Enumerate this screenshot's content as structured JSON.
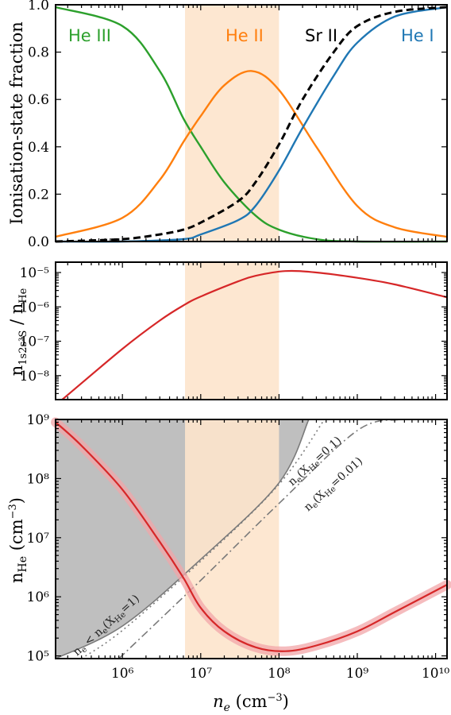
{
  "colors": {
    "he3": "#2ca02c",
    "he2": "#ff7f0e",
    "he1": "#1f77b4",
    "sr2": "#000000",
    "metastable": "#d62728",
    "band": "#fde4cc",
    "excluded": "#b4b4b4",
    "limit": "#7a7a7a"
  },
  "chart_data": [
    {
      "type": "line",
      "ylabel": "Ionisation-state fraction",
      "xscale": "log",
      "xlim": [
        140000.0,
        14000000000.0
      ],
      "ylim": [
        0,
        1.0
      ],
      "yticks": [
        "0.0",
        "0.2",
        "0.4",
        "0.6",
        "0.8",
        "1.0"
      ],
      "shaded_band": {
        "x_from": 6300000.0,
        "x_to": 100000000.0
      },
      "series": [
        {
          "name": "He III",
          "style": "solid",
          "color_key": "he3",
          "x": [
            140000.0,
            1000000.0,
            3000000.0,
            6000000.0,
            10000000.0,
            20000000.0,
            50000000.0,
            100000000.0,
            300000000.0,
            1000000000.0,
            14000000000.0
          ],
          "y": [
            0.99,
            0.91,
            0.72,
            0.52,
            0.4,
            0.25,
            0.11,
            0.05,
            0.01,
            0.0,
            0.0
          ]
        },
        {
          "name": "He II",
          "style": "solid",
          "color_key": "he2",
          "x": [
            140000.0,
            1000000.0,
            3000000.0,
            6000000.0,
            10000000.0,
            20000000.0,
            45000000.0,
            100000000.0,
            300000000.0,
            1000000000.0,
            3000000000.0,
            14000000000.0
          ],
          "y": [
            0.02,
            0.1,
            0.26,
            0.42,
            0.53,
            0.66,
            0.72,
            0.64,
            0.4,
            0.15,
            0.06,
            0.02
          ]
        },
        {
          "name": "He I",
          "style": "solid",
          "color_key": "he1",
          "x": [
            140000.0,
            1000000.0,
            6000000.0,
            10000000.0,
            30000000.0,
            50000000.0,
            100000000.0,
            200000000.0,
            500000000.0,
            1000000000.0,
            3000000000.0,
            14000000000.0
          ],
          "y": [
            0.0,
            0.0,
            0.01,
            0.03,
            0.09,
            0.15,
            0.3,
            0.48,
            0.7,
            0.84,
            0.95,
            0.99
          ]
        },
        {
          "name": "Sr II",
          "style": "dashed",
          "color_key": "sr2",
          "x": [
            140000.0,
            1000000.0,
            3000000.0,
            6000000.0,
            10000000.0,
            30000000.0,
            50000000.0,
            100000000.0,
            200000000.0,
            500000000.0,
            1000000000.0,
            3000000000.0,
            14000000000.0
          ],
          "y": [
            0.0,
            0.01,
            0.03,
            0.05,
            0.08,
            0.17,
            0.25,
            0.41,
            0.6,
            0.8,
            0.91,
            0.97,
            0.99
          ]
        }
      ],
      "labels": [
        "He III",
        "He II",
        "Sr II",
        "He I"
      ]
    },
    {
      "type": "line",
      "ylabel": "n_{1s2s³S} / n_He",
      "xscale": "log",
      "yscale": "log",
      "xlim": [
        140000.0,
        14000000000.0
      ],
      "ylim": [
        2e-09,
        2e-05
      ],
      "yticks": [
        "10⁻⁸",
        "10⁻⁷",
        "10⁻⁶",
        "10⁻⁵"
      ],
      "shaded_band": {
        "x_from": 6300000.0,
        "x_to": 100000000.0
      },
      "series": [
        {
          "name": "",
          "color_key": "metastable",
          "x": [
            170000.0,
            1000000.0,
            3000000.0,
            6000000.0,
            10000000.0,
            30000000.0,
            50000000.0,
            120000000.0,
            300000000.0,
            1000000000.0,
            3000000000.0,
            14000000000.0
          ],
          "y": [
            2e-09,
            6e-08,
            4e-07,
            1.1e-06,
            2e-06,
            5.5e-06,
            8e-06,
            1.1e-05,
            1e-05,
            7e-06,
            4.5e-06,
            1.9e-06
          ]
        }
      ]
    },
    {
      "type": "line",
      "xlabel": "n_e (cm⁻³)",
      "ylabel": "n_He (cm⁻³)",
      "xscale": "log",
      "yscale": "log",
      "xlim": [
        140000.0,
        14000000000.0
      ],
      "ylim": [
        90000.0,
        1000000000.0
      ],
      "xticks": [
        "10⁶",
        "10⁷",
        "10⁸",
        "10⁹",
        "10¹⁰"
      ],
      "yticks": [
        "10⁵",
        "10⁶",
        "10⁷",
        "10⁸",
        "10⁹"
      ],
      "shaded_band": {
        "x_from": 6300000.0,
        "x_to": 100000000.0
      },
      "series": [
        {
          "name": "",
          "color_key": "metastable",
          "uncertainty_band": true,
          "x": [
            140000.0,
            300000.0,
            1000000.0,
            3000000.0,
            6000000.0,
            10000000.0,
            20000000.0,
            50000000.0,
            120000000.0,
            300000000.0,
            1000000000.0,
            3000000000.0,
            14000000000.0
          ],
          "y": [
            900000000.0,
            360000000.0,
            65000000.0,
            8500000.0,
            2100000.0,
            650000.0,
            260000.0,
            140000.0,
            120000.0,
            150000.0,
            260000.0,
            550000.0,
            1600000.0
          ]
        }
      ],
      "limits": [
        {
          "label": "n_e < n_e(X_He=1)",
          "style": "solid-excluded",
          "x": [
            140000.0,
            1000000.0,
            10000000.0,
            100000000.0,
            240000000.0
          ],
          "y": [
            90000.0,
            320000.0,
            4300000.0,
            85000000.0,
            1000000000.0
          ]
        },
        {
          "label": "n_e(X_He=0.1)",
          "style": "dotted",
          "x": [
            300000.0,
            1000000.0,
            10000000.0,
            100000000.0,
            380000000.0
          ],
          "y": [
            90000.0,
            270000.0,
            4000000.0,
            80000000.0,
            1000000000.0
          ]
        },
        {
          "label": "n_e(X_He=0.01)",
          "style": "dashdot",
          "x": [
            900000.0,
            10000000.0,
            100000000.0,
            1000000000.0,
            3400000000.0
          ],
          "y": [
            90000.0,
            1900000.0,
            38000000.0,
            650000000.0,
            1000000000.0
          ]
        }
      ]
    }
  ]
}
